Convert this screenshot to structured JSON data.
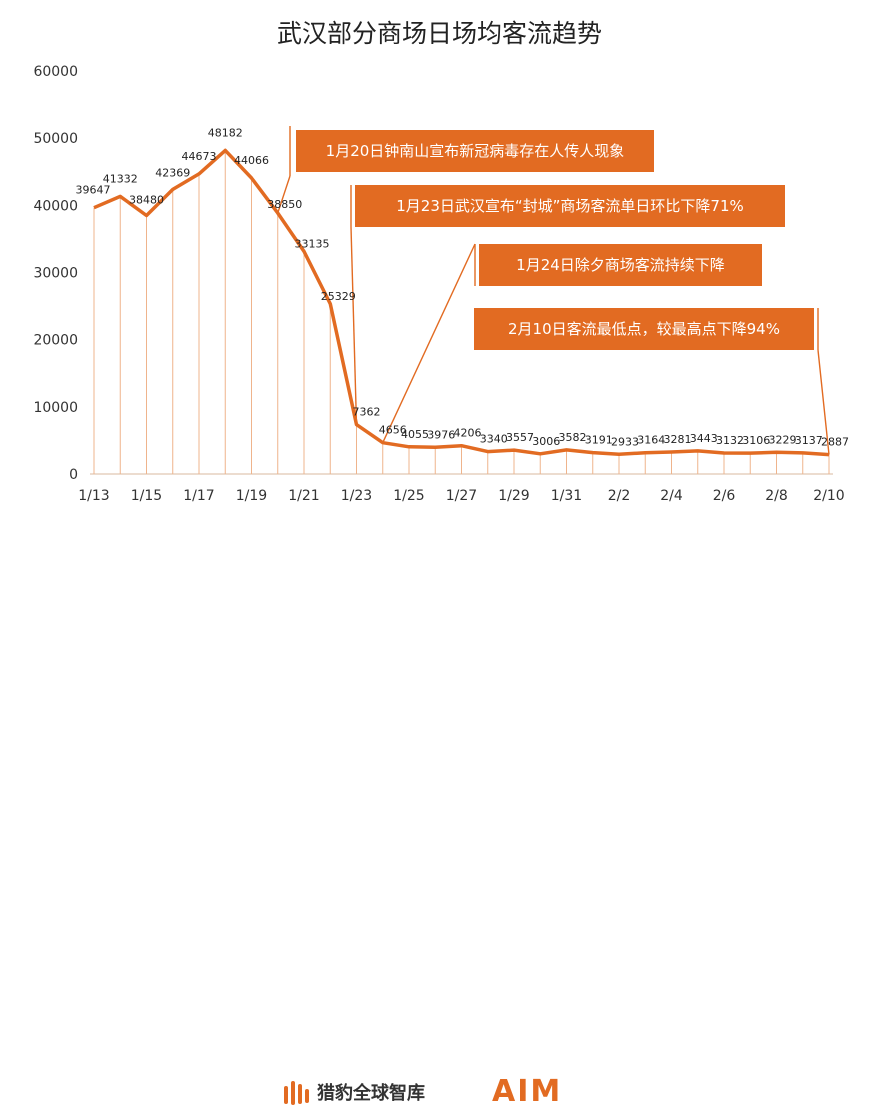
{
  "chart_data": {
    "type": "line",
    "title": "武汉部分商场日场均客流趋势",
    "x": [
      "1/13",
      "1/14",
      "1/15",
      "1/16",
      "1/17",
      "1/18",
      "1/19",
      "1/20",
      "1/21",
      "1/22",
      "1/23",
      "1/24",
      "1/25",
      "1/26",
      "1/27",
      "1/28",
      "1/29",
      "1/30",
      "1/31",
      "2/1",
      "2/2",
      "2/3",
      "2/4",
      "2/5",
      "2/6",
      "2/7",
      "2/8",
      "2/9",
      "2/10"
    ],
    "xtick_labels": [
      "1/13",
      "1/15",
      "1/17",
      "1/19",
      "1/21",
      "1/23",
      "1/25",
      "1/27",
      "1/29",
      "1/31",
      "2/2",
      "2/4",
      "2/6",
      "2/8",
      "2/10"
    ],
    "series": [
      {
        "values": [
          39647,
          41332,
          38480,
          42369,
          44673,
          48182,
          44066,
          38850,
          33135,
          25329,
          7362,
          4656,
          4055,
          3976,
          4206,
          3340,
          3557,
          3006,
          3582,
          3191,
          2933,
          3164,
          3281,
          3443,
          3132,
          3106,
          3229,
          3137,
          2887
        ]
      }
    ],
    "ylim": [
      0,
      60000
    ],
    "yticks": [
      0,
      10000,
      20000,
      30000,
      40000,
      50000,
      60000
    ],
    "color": "#e26b22",
    "annotations": [
      {
        "text": "1月20日钟南山宣布新冠病毒存在人传人现象",
        "x": "1/20"
      },
      {
        "text": "1月23日武汉宣布“封城”商场客流单日环比下降71%",
        "x": "1/23"
      },
      {
        "text": "1月24日除夕商场客流持续下降",
        "x": "1/24"
      },
      {
        "text": "2月10日客流最低点，较最高点下降94%",
        "x": "2/10"
      }
    ]
  },
  "footer": {
    "logo_left_text": "猎豹全球智库",
    "logo_right_text": "AIM"
  }
}
